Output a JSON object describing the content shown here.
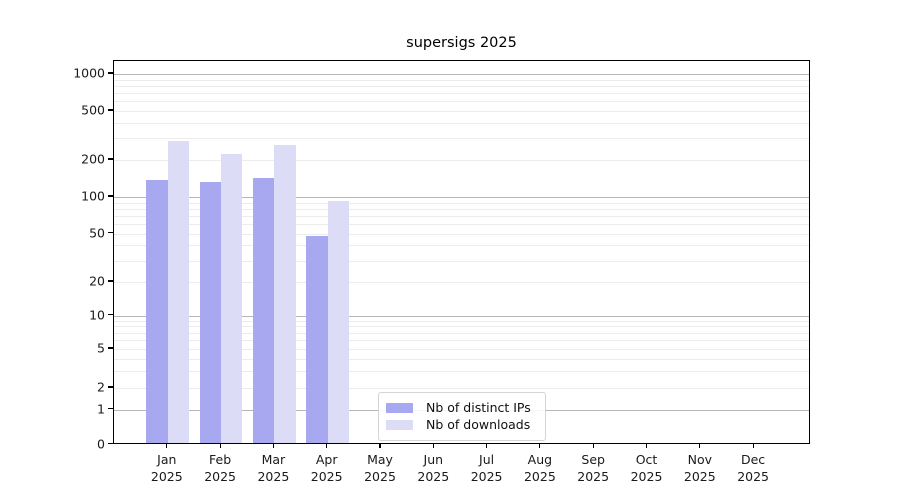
{
  "chart_data": {
    "type": "bar",
    "title": "supersigs 2025",
    "year_label": "2025",
    "months": [
      "Jan",
      "Feb",
      "Mar",
      "Apr",
      "May",
      "Jun",
      "Jul",
      "Aug",
      "Sep",
      "Oct",
      "Nov",
      "Dec"
    ],
    "series": [
      {
        "name": "Nb of distinct IPs",
        "color": "#a8a8f0",
        "values": [
          138,
          133,
          144,
          48,
          0,
          0,
          0,
          0,
          0,
          0,
          0,
          0
        ]
      },
      {
        "name": "Nb of downloads",
        "color": "#dcdcf7",
        "values": [
          285,
          222,
          264,
          93,
          0,
          0,
          0,
          0,
          0,
          0,
          0,
          0
        ]
      }
    ],
    "y_axis": {
      "scale": "symlog",
      "ticks": [
        0,
        1,
        2,
        5,
        10,
        20,
        50,
        100,
        200,
        500,
        1000
      ],
      "ylim": [
        0,
        1200
      ]
    },
    "grid": {
      "on": true,
      "major_color": "#b6b6b6",
      "minor_color": "#ececec"
    },
    "legend": {
      "position": "bottom-center",
      "entries": [
        "Nb of distinct IPs",
        "Nb of downloads"
      ]
    },
    "axis_color": "#000000",
    "background": "#ffffff"
  }
}
